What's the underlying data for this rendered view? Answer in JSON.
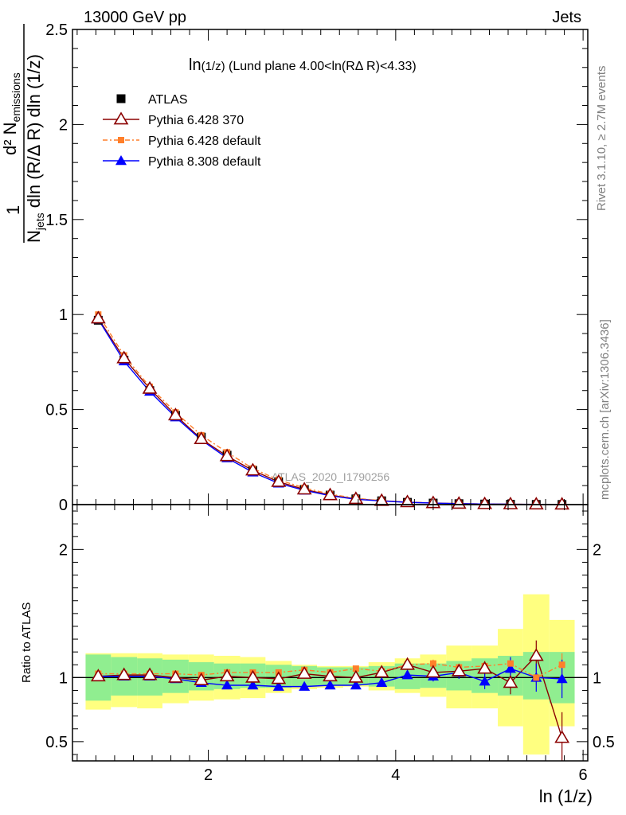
{
  "header": {
    "left": "13000 GeV pp",
    "right": "Jets"
  },
  "plot_title": {
    "main": "ln",
    "sub": "(1/z)",
    "rest": " (Lund plane 4.00<ln(RΔ R)<4.33)"
  },
  "watermark": "ATLAS_2020_I1790256",
  "side_labels": {
    "rivet": "Rivet 3.1.10, ≥ 2.7M events",
    "mcplots": "mcplots.cern.ch [arXiv:1306.3436]"
  },
  "ylabel_main": {
    "prefix": "1",
    "numer": "d² N",
    "numer_sub": "emissions",
    "denom_a": "N",
    "denom_a_sub": "jets",
    "denom_b": " dln (R/Δ R) dln (1/z)"
  },
  "ylabel_ratio": "Ratio to ATLAS",
  "xlabel": "ln (1/z)",
  "colors": {
    "data": "#000000",
    "py6_370": "#8b0000",
    "py6_default": "#ff7f2a",
    "py8_default": "#0000ff",
    "band_inner": "#90ee90",
    "band_outer": "#ffff80"
  },
  "chart_data": {
    "type": "line",
    "xlim": [
      0.55,
      6.05
    ],
    "main": {
      "ylim": [
        0,
        2.5
      ],
      "yticks": [
        0.5,
        1,
        1.5,
        2,
        2.5
      ],
      "ytick_labels": [
        "0.5",
        "1",
        "1.5",
        "2",
        "2.5"
      ],
      "ytick_zero_label": "0"
    },
    "ratio": {
      "ylim": [
        0.35,
        2.35
      ],
      "yticks": [
        0.5,
        1,
        2
      ],
      "ytick_labels": [
        "0.5",
        "1",
        "2"
      ],
      "ref": 1.0
    },
    "xticks": [
      2,
      4,
      6
    ],
    "xtick_labels": [
      "2",
      "4",
      "6"
    ],
    "x": [
      0.825,
      1.1,
      1.375,
      1.65,
      1.925,
      2.2,
      2.475,
      2.75,
      3.025,
      3.3,
      3.575,
      3.85,
      4.125,
      4.4,
      4.675,
      4.95,
      5.225,
      5.5,
      5.775
    ],
    "bin_edges": [
      0.69,
      0.96,
      1.24,
      1.51,
      1.79,
      2.06,
      2.34,
      2.61,
      2.89,
      3.16,
      3.44,
      3.71,
      3.99,
      4.26,
      4.54,
      4.81,
      5.09,
      5.36,
      5.64,
      5.91
    ],
    "band_inner": [
      [
        0.82,
        1.18
      ],
      [
        0.86,
        1.16
      ],
      [
        0.86,
        1.15
      ],
      [
        0.88,
        1.14
      ],
      [
        0.9,
        1.12
      ],
      [
        0.91,
        1.11
      ],
      [
        0.92,
        1.11
      ],
      [
        0.92,
        1.1
      ],
      [
        0.93,
        1.09
      ],
      [
        0.94,
        1.08
      ],
      [
        0.94,
        1.08
      ],
      [
        0.93,
        1.09
      ],
      [
        0.91,
        1.11
      ],
      [
        0.92,
        1.11
      ],
      [
        0.9,
        1.13
      ],
      [
        0.88,
        1.15
      ],
      [
        0.86,
        1.17
      ],
      [
        0.83,
        1.2
      ],
      [
        0.8,
        1.2
      ]
    ],
    "band_outer": [
      [
        0.75,
        1.19
      ],
      [
        0.77,
        1.19
      ],
      [
        0.76,
        1.19
      ],
      [
        0.8,
        1.18
      ],
      [
        0.82,
        1.18
      ],
      [
        0.83,
        1.17
      ],
      [
        0.84,
        1.16
      ],
      [
        0.88,
        1.13
      ],
      [
        0.91,
        1.1
      ],
      [
        0.92,
        1.09
      ],
      [
        0.93,
        1.09
      ],
      [
        0.9,
        1.12
      ],
      [
        0.88,
        1.15
      ],
      [
        0.85,
        1.18
      ],
      [
        0.76,
        1.25
      ],
      [
        0.76,
        1.25
      ],
      [
        0.62,
        1.38
      ],
      [
        0.4,
        1.65
      ],
      [
        0.62,
        1.45
      ]
    ],
    "series": [
      {
        "name": "ATLAS",
        "values": [
          0.97,
          0.76,
          0.6,
          0.47,
          0.355,
          0.26,
          0.18,
          0.12,
          0.08,
          0.05,
          0.03,
          0.02,
          0.012,
          0.008,
          0.005,
          0.003,
          0.002,
          0.001,
          0.0008
        ]
      },
      {
        "name": "Pythia 6.428 370",
        "values": [
          0.98,
          0.77,
          0.61,
          0.47,
          0.345,
          0.255,
          0.18,
          0.12,
          0.08,
          0.05,
          0.03,
          0.02,
          0.013,
          0.008,
          0.005,
          0.003,
          0.002,
          0.001,
          0.0007
        ],
        "ratio": [
          1.01,
          1.02,
          1.02,
          1.0,
          0.98,
          1.01,
          1.0,
          0.99,
          1.03,
          1.01,
          1.0,
          1.04,
          1.1,
          1.04,
          1.05,
          1.07,
          0.96,
          1.17,
          0.53
        ],
        "ratio_err": [
          0.01,
          0.01,
          0.01,
          0.01,
          0.01,
          0.01,
          0.01,
          0.02,
          0.02,
          0.02,
          0.02,
          0.03,
          0.04,
          0.04,
          0.05,
          0.06,
          0.09,
          0.12,
          0.2
        ]
      },
      {
        "name": "Pythia 6.428 default",
        "values": [
          1.0,
          0.785,
          0.62,
          0.485,
          0.365,
          0.275,
          0.19,
          0.13,
          0.088,
          0.055,
          0.033,
          0.021,
          0.013,
          0.009,
          0.0055,
          0.0033,
          0.002,
          0.001,
          0.0008
        ],
        "ratio": [
          1.03,
          1.03,
          1.03,
          1.03,
          1.02,
          1.04,
          1.04,
          1.04,
          1.06,
          1.04,
          1.07,
          1.05,
          1.1,
          1.11,
          1.08,
          1.09,
          1.11,
          1.0,
          1.1
        ],
        "ratio_err": [
          0.01,
          0.01,
          0.01,
          0.01,
          0.01,
          0.01,
          0.01,
          0.01,
          0.02,
          0.02,
          0.02,
          0.02,
          0.03,
          0.03,
          0.03,
          0.04,
          0.05,
          0.06,
          0.09
        ]
      },
      {
        "name": "Pythia 8.308 default",
        "values": [
          0.975,
          0.755,
          0.595,
          0.46,
          0.34,
          0.245,
          0.17,
          0.112,
          0.075,
          0.047,
          0.028,
          0.019,
          0.012,
          0.008,
          0.005,
          0.003,
          0.002,
          0.001,
          0.0008
        ],
        "ratio": [
          1.01,
          1.01,
          1.01,
          0.99,
          0.96,
          0.94,
          0.94,
          0.93,
          0.93,
          0.94,
          0.94,
          0.96,
          1.02,
          1.01,
          1.04,
          0.97,
          1.07,
          1.0,
          0.99
        ],
        "ratio_err": [
          0.01,
          0.01,
          0.01,
          0.01,
          0.01,
          0.01,
          0.01,
          0.01,
          0.01,
          0.01,
          0.02,
          0.02,
          0.03,
          0.04,
          0.05,
          0.06,
          0.09,
          0.11,
          0.15
        ]
      }
    ]
  },
  "legend": [
    {
      "key": "data",
      "label": "ATLAS"
    },
    {
      "key": "py6_370",
      "label": "Pythia 6.428 370"
    },
    {
      "key": "py6_default",
      "label": "Pythia 6.428 default"
    },
    {
      "key": "py8_default",
      "label": "Pythia 8.308 default"
    }
  ]
}
